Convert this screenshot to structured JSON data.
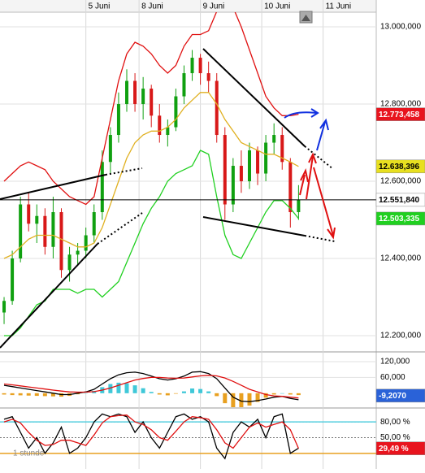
{
  "chart_data": [
    {
      "type": "candlestick",
      "xlim": [
        0,
        46
      ],
      "xticks": [
        {
          "value": 10.5,
          "label": "5 Juni"
        },
        {
          "value": 17,
          "label": "8 Juni"
        },
        {
          "value": 24.5,
          "label": "9 Juni"
        },
        {
          "value": 32,
          "label": "10 Juni"
        },
        {
          "value": 39.5,
          "label": "11 Juni"
        }
      ],
      "ylim": [
        12160,
        13038
      ],
      "yticks": [
        {
          "value": 13000,
          "label": "13.000,000"
        },
        {
          "value": 12800,
          "label": "12.800,000"
        },
        {
          "value": 12600,
          "label": "12.600,000"
        },
        {
          "value": 12400,
          "label": "12.400,000"
        },
        {
          "value": 12200,
          "label": "12.200,000"
        }
      ],
      "grid": true,
      "up_color": "#10a010",
      "down_color": "#d81818",
      "open": [
        12260,
        12290,
        12400,
        12540,
        12490,
        12510,
        12430,
        12520,
        12370,
        12410,
        12420,
        12460,
        12520,
        12650,
        12720,
        12800,
        12860,
        12800,
        12840,
        12770,
        12720,
        12740,
        12820,
        12880,
        12920,
        12880,
        12860,
        12720,
        12540,
        12640,
        12600,
        12680,
        12620,
        12700,
        12720,
        12650,
        12520
      ],
      "high": [
        12300,
        12420,
        12560,
        12570,
        12540,
        12530,
        12560,
        12530,
        12430,
        12440,
        12480,
        12540,
        12680,
        12740,
        12830,
        12890,
        12880,
        12870,
        12850,
        12800,
        12760,
        12840,
        12900,
        12940,
        12930,
        12910,
        12880,
        12740,
        12660,
        12680,
        12700,
        12690,
        12720,
        12750,
        12740,
        12660,
        12590
      ],
      "low": [
        12230,
        12280,
        12390,
        12470,
        12440,
        12410,
        12400,
        12350,
        12340,
        12380,
        12400,
        12440,
        12500,
        12620,
        12700,
        12780,
        12780,
        12760,
        12740,
        12700,
        12690,
        12730,
        12800,
        12860,
        12850,
        12830,
        12700,
        12500,
        12520,
        12570,
        12580,
        12590,
        12600,
        12670,
        12630,
        12480,
        12500
      ],
      "close": [
        12290,
        12400,
        12540,
        12490,
        12510,
        12430,
        12520,
        12370,
        12410,
        12420,
        12460,
        12520,
        12650,
        12720,
        12800,
        12860,
        12800,
        12840,
        12770,
        12720,
        12740,
        12820,
        12880,
        12920,
        12880,
        12860,
        12720,
        12540,
        12640,
        12600,
        12680,
        12620,
        12700,
        12720,
        12650,
        12520,
        12551.84
      ],
      "bands": [
        {
          "color": "#e01010",
          "values": [
            12600,
            12620,
            12640,
            12650,
            12640,
            12630,
            12600,
            12580,
            12560,
            12550,
            12540,
            12560,
            12660,
            12760,
            12860,
            12930,
            12960,
            12950,
            12930,
            12900,
            12880,
            12900,
            12950,
            12980,
            12980,
            12990,
            13040,
            13060,
            13050,
            13000,
            12940,
            12880,
            12820,
            12790,
            12770,
            12770,
            12773.458
          ]
        },
        {
          "color": "#e0b020",
          "values": [
            12400,
            12410,
            12430,
            12450,
            12460,
            12460,
            12460,
            12450,
            12440,
            12430,
            12430,
            12440,
            12480,
            12540,
            12600,
            12660,
            12700,
            12720,
            12730,
            12730,
            12740,
            12760,
            12790,
            12810,
            12830,
            12830,
            12800,
            12760,
            12730,
            12700,
            12690,
            12680,
            12670,
            12670,
            12660,
            12650,
            12638.396
          ]
        },
        {
          "color": "#20d020",
          "values": [
            12200,
            12200,
            12220,
            12250,
            12280,
            12290,
            12320,
            12320,
            12320,
            12310,
            12320,
            12320,
            12300,
            12320,
            12340,
            12390,
            12440,
            12490,
            12530,
            12560,
            12600,
            12620,
            12630,
            12640,
            12680,
            12670,
            12560,
            12460,
            12410,
            12400,
            12440,
            12480,
            12520,
            12550,
            12550,
            12530,
            12503.335
          ]
        }
      ],
      "tags": [
        {
          "value": 12773.458,
          "label": "12.773,458",
          "color": "#e8141e",
          "text_color": "#ffffff"
        },
        {
          "value": 12638.396,
          "label": "12.638,396",
          "color": "#e8e020",
          "text_color": "#000000"
        },
        {
          "value": 12551.84,
          "label": "12.551,840",
          "color": "#ffffff",
          "text_color": "#000000",
          "line": true
        },
        {
          "value": 12503.335,
          "label": "12.503,335",
          "color": "#20d020",
          "text_color": "#ffffff"
        }
      ]
    },
    {
      "type": "line",
      "ylim": [
        -53,
        157
      ],
      "yticks": [
        {
          "value": 120,
          "label": "120,000"
        },
        {
          "value": 60,
          "label": "60,000"
        }
      ],
      "grid": true,
      "histogram": {
        "color_up": "#40c8d8",
        "color_down": "#e8a020",
        "values": [
          -5,
          -7,
          -8,
          -9,
          -10,
          -11,
          -12,
          -13,
          -10,
          -4,
          1,
          9,
          23,
          35,
          40,
          38,
          30,
          19,
          5,
          -5,
          -8,
          -2,
          7,
          18,
          16,
          7,
          -11,
          -38,
          -60,
          -60,
          -47,
          -33,
          -17,
          -5,
          0,
          -5,
          -7
        ]
      },
      "series": [
        {
          "color": "#000000",
          "values": [
            30,
            25,
            20,
            15,
            10,
            5,
            0,
            -5,
            -5,
            0,
            5,
            15,
            35,
            55,
            70,
            78,
            80,
            75,
            65,
            55,
            50,
            55,
            65,
            80,
            82,
            75,
            55,
            20,
            -15,
            -30,
            -32,
            -28,
            -22,
            -15,
            -12,
            -20,
            -25
          ]
        },
        {
          "color": "#e01010",
          "values": [
            35,
            32,
            28,
            24,
            20,
            16,
            12,
            8,
            5,
            4,
            4,
            6,
            12,
            20,
            30,
            40,
            50,
            56,
            60,
            60,
            58,
            57,
            58,
            62,
            66,
            68,
            66,
            58,
            45,
            30,
            15,
            5,
            -5,
            -10,
            -12,
            -15,
            -18
          ]
        }
      ],
      "tags": [
        {
          "value": -9.207,
          "label": "-9,2070",
          "color": "#2a62d8",
          "text_color": "#ffffff"
        }
      ]
    },
    {
      "type": "line",
      "ylim": [
        -2,
        105
      ],
      "yticks": [
        {
          "value": 80,
          "label": "80,00 %"
        },
        {
          "value": 50,
          "label": "50,00 %"
        }
      ],
      "grid": "dotted",
      "levels": [
        {
          "value": 80,
          "color": "#5ad0e0"
        },
        {
          "value": 20,
          "color": "#e8a020"
        }
      ],
      "series": [
        {
          "color": "#000000",
          "values": [
            85,
            90,
            60,
            30,
            50,
            20,
            40,
            70,
            20,
            30,
            50,
            80,
            95,
            90,
            95,
            90,
            60,
            80,
            50,
            30,
            60,
            90,
            95,
            85,
            90,
            80,
            30,
            10,
            60,
            80,
            70,
            85,
            50,
            90,
            95,
            20,
            30
          ]
        },
        {
          "color": "#e01010",
          "values": [
            80,
            85,
            78,
            60,
            45,
            35,
            37,
            45,
            45,
            40,
            35,
            55,
            78,
            90,
            92,
            93,
            80,
            75,
            65,
            50,
            45,
            62,
            80,
            90,
            88,
            85,
            65,
            40,
            30,
            50,
            70,
            78,
            70,
            75,
            80,
            65,
            29.49
          ]
        }
      ],
      "tags": [
        {
          "value": 29.49,
          "label": "29,49 %",
          "color": "#e8141e",
          "text_color": "#ffffff"
        }
      ],
      "annotation": "1 stunde"
    }
  ]
}
